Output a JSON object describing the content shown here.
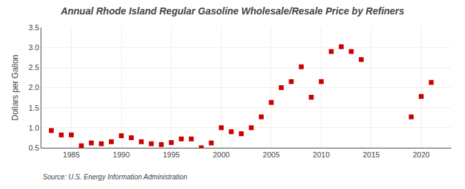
{
  "chart_data": {
    "type": "scatter",
    "title": "Annual Rhode Island Regular Gasoline Wholesale/Resale Price by Refiners",
    "y_label": "Dollars per Gallon",
    "annotations": [
      "Source: U.S. Energy Information Administration"
    ],
    "x": [
      1983,
      1984,
      1985,
      1986,
      1987,
      1988,
      1989,
      1990,
      1991,
      1992,
      1993,
      1994,
      1995,
      1996,
      1997,
      1998,
      1999,
      2000,
      2001,
      2002,
      2003,
      2004,
      2005,
      2006,
      2007,
      2008,
      2009,
      2010,
      2011,
      2012,
      2013,
      2014,
      2019,
      2020,
      2021
    ],
    "values": [
      0.93,
      0.82,
      0.82,
      0.55,
      0.62,
      0.6,
      0.65,
      0.8,
      0.75,
      0.65,
      0.6,
      0.58,
      0.63,
      0.72,
      0.72,
      0.5,
      0.62,
      1.0,
      0.9,
      0.85,
      1.0,
      1.27,
      1.63,
      2.0,
      2.15,
      2.52,
      1.76,
      2.15,
      2.9,
      3.02,
      2.9,
      2.7,
      1.27,
      1.78,
      2.13
    ],
    "color": "#cc0000",
    "marker": "square",
    "xlim": [
      1982,
      2023
    ],
    "ylim": [
      0.5,
      3.5
    ],
    "xticks": [
      1985,
      1990,
      1995,
      2000,
      2005,
      2010,
      2015,
      2020
    ],
    "yticks": [
      0.5,
      {
        "value": 1,
        "label": "1.0"
      },
      1.5,
      {
        "value": 2,
        "label": "2.0"
      },
      2.5,
      {
        "value": 3,
        "label": "3.0"
      },
      3.5
    ],
    "grid": true
  }
}
